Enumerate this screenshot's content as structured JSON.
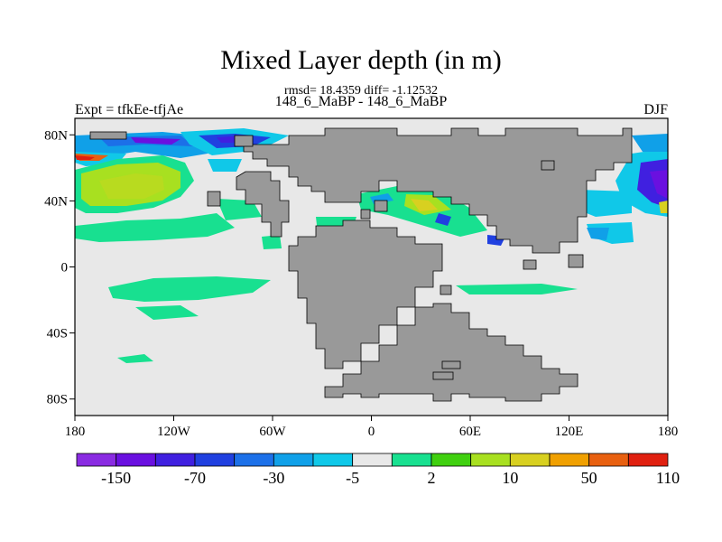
{
  "title": "Mixed Layer depth (in m)",
  "stats_line": "rmsd= 18.4359 diff= -1.12532",
  "comparison_line": "148_6_MaBP - 148_6_MaBP",
  "experiment_label": "Expt = tfkEe-tfjAe",
  "season_label": "DJF",
  "lat_ticks": [
    {
      "value": 80,
      "label": "80N"
    },
    {
      "value": 40,
      "label": "40N"
    },
    {
      "value": 0,
      "label": "0"
    },
    {
      "value": -40,
      "label": "40S"
    },
    {
      "value": -80,
      "label": "80S"
    }
  ],
  "lon_ticks": [
    {
      "value": -180,
      "label": "180"
    },
    {
      "value": -120,
      "label": "120W"
    },
    {
      "value": -60,
      "label": "60W"
    },
    {
      "value": 0,
      "label": "0"
    },
    {
      "value": 60,
      "label": "60E"
    },
    {
      "value": 120,
      "label": "120E"
    },
    {
      "value": 180,
      "label": "180"
    }
  ],
  "colorbar": {
    "colors": [
      "#8a2be2",
      "#6a10e0",
      "#4020e0",
      "#2040e0",
      "#1c70e8",
      "#10a0e8",
      "#10c8e8",
      "#e8e8e8",
      "#18e090",
      "#40d010",
      "#a8e020",
      "#d8d020",
      "#f0a000",
      "#e86010",
      "#e02010"
    ],
    "labels": [
      "-150",
      "-70",
      "-30",
      "-5",
      "2",
      "10",
      "50",
      "110"
    ]
  },
  "colors": {
    "land": "#999999",
    "ocean_neutral": "#e8e8e8"
  }
}
